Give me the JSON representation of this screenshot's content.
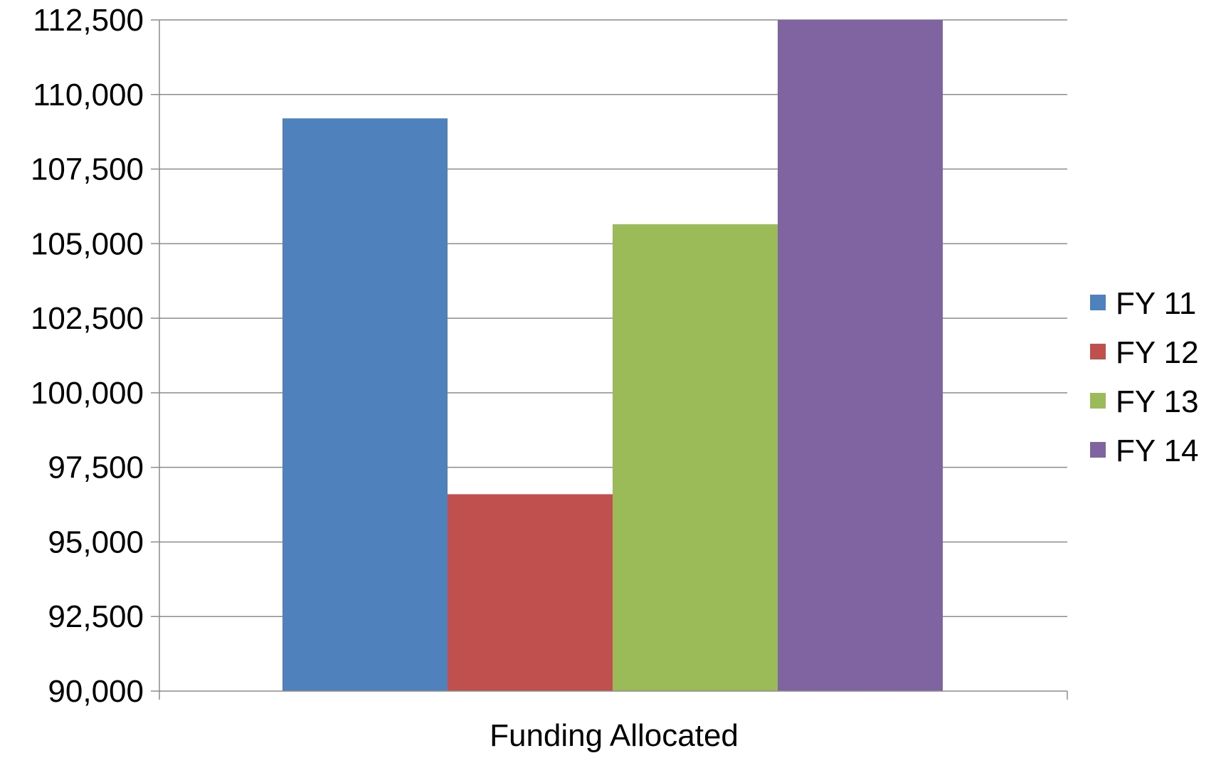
{
  "chart_data": {
    "type": "bar",
    "categories": [
      "Funding Allocated"
    ],
    "series": [
      {
        "name": "FY 11",
        "values": [
          109200
        ],
        "color": "#4f81bd"
      },
      {
        "name": "FY 12",
        "values": [
          96600
        ],
        "color": "#c0504d"
      },
      {
        "name": "FY 13",
        "values": [
          105650
        ],
        "color": "#9bbb59"
      },
      {
        "name": "FY 14",
        "values": [
          112500
        ],
        "color": "#8064a2"
      }
    ],
    "ylim": [
      90000,
      112500
    ],
    "y_ticks": [
      "90,000",
      "92,500",
      "95,000",
      "97,500",
      "100,000",
      "102,500",
      "105,000",
      "107,500",
      "110,000",
      "112,500"
    ],
    "y_tick_values": [
      90000,
      92500,
      95000,
      97500,
      100000,
      102500,
      105000,
      107500,
      110000,
      112500
    ],
    "grid": true,
    "legend_position": "right"
  }
}
